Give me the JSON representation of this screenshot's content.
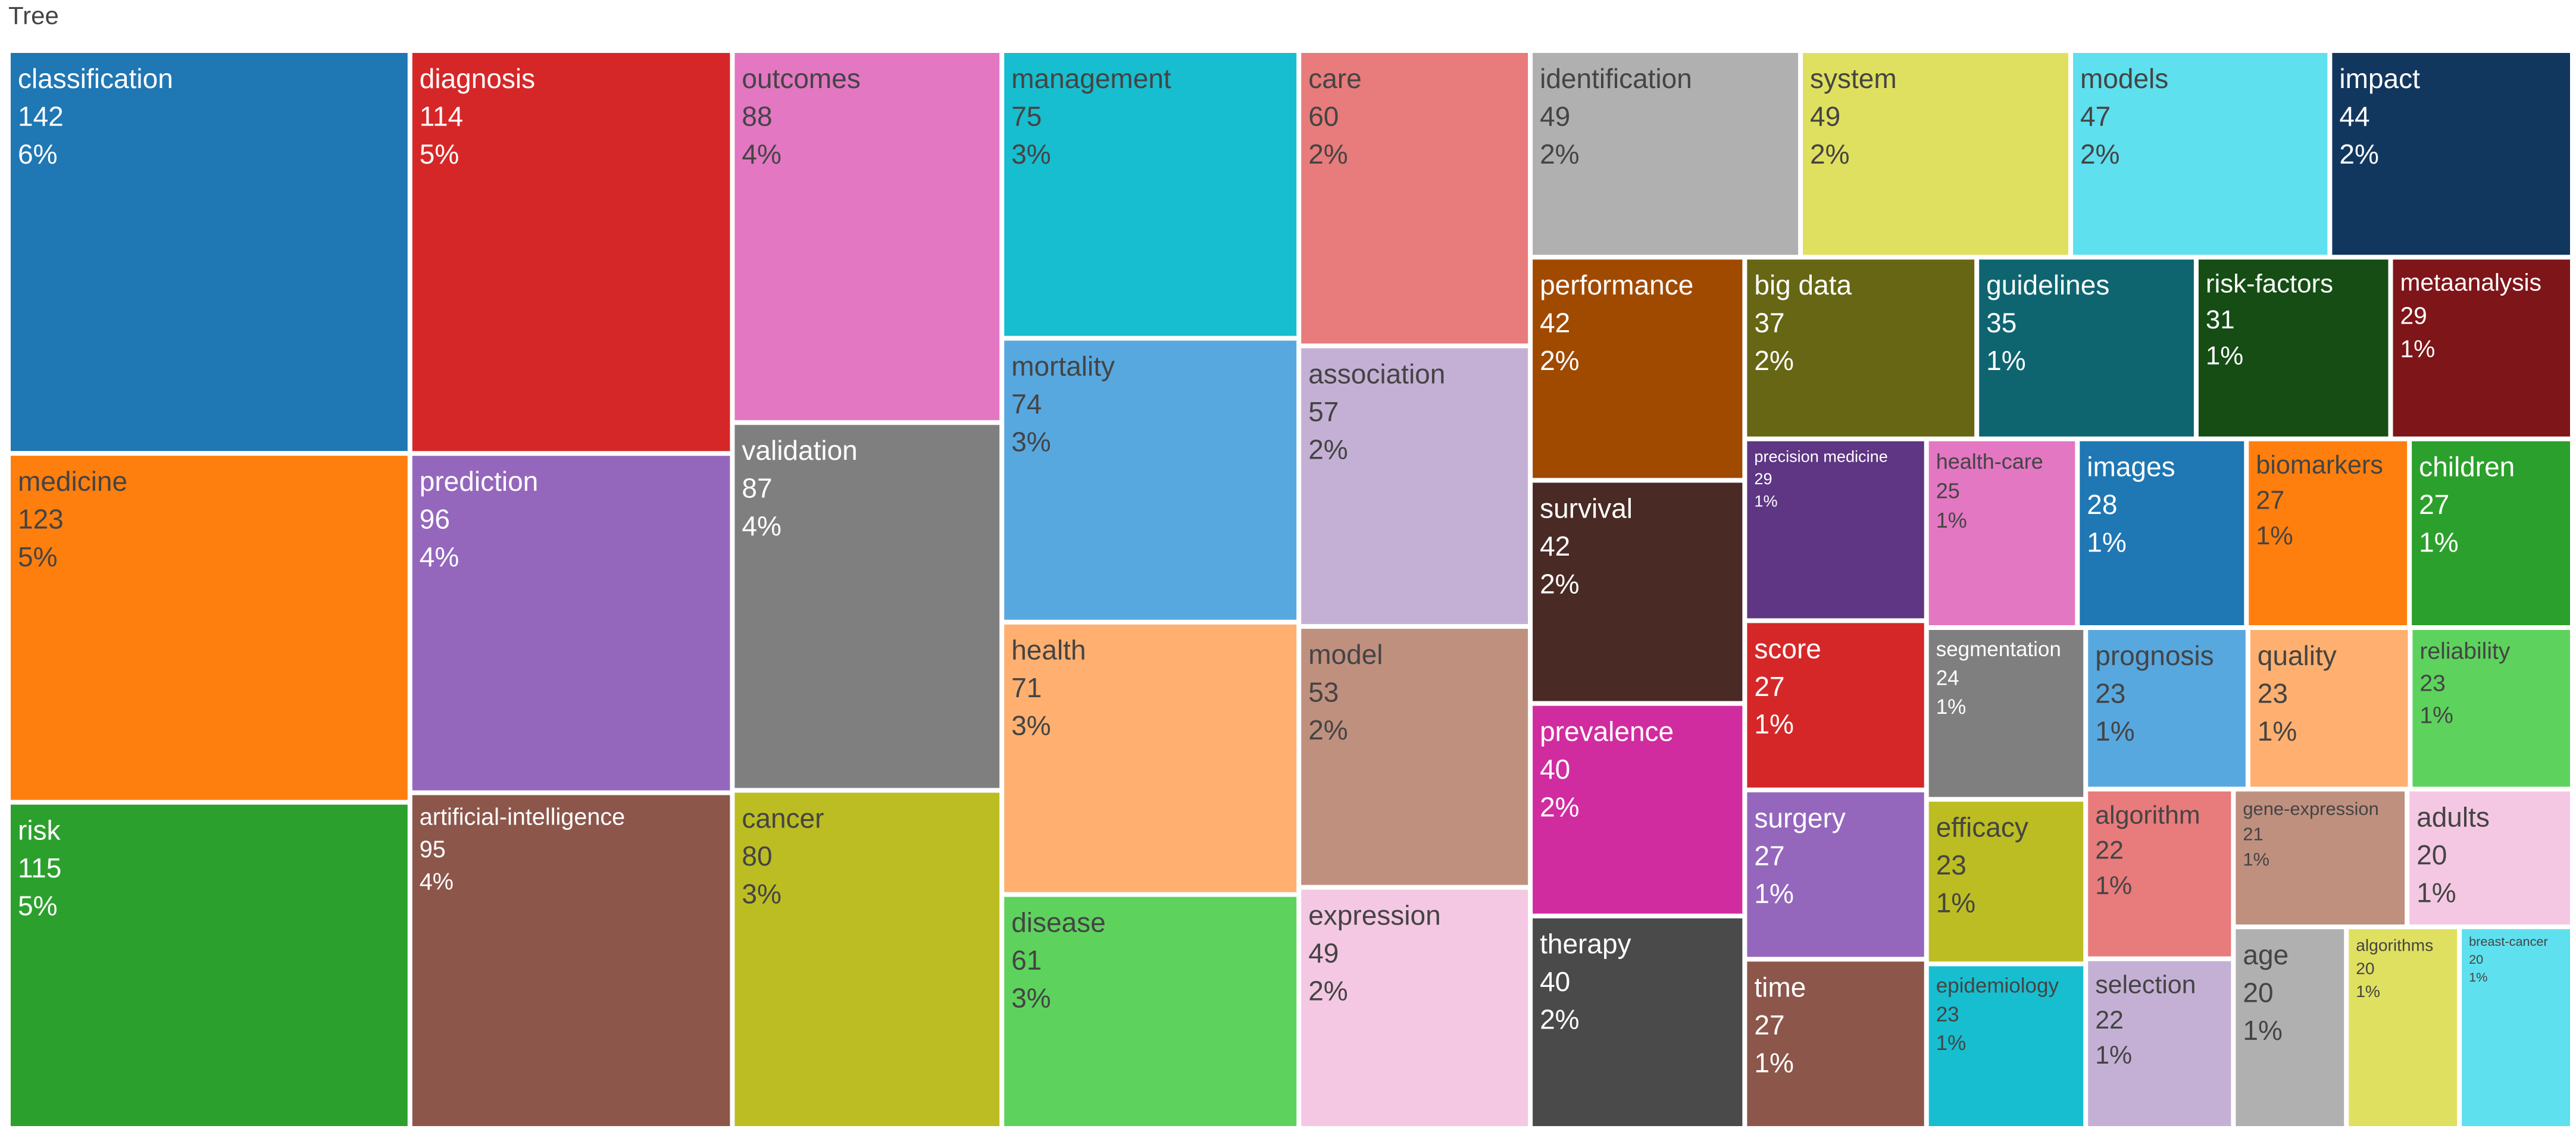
{
  "chart_data": {
    "type": "treemap",
    "title": "Tree",
    "categories": [
      "classification",
      "medicine",
      "risk",
      "diagnosis",
      "prediction",
      "artificial-intelligence",
      "outcomes",
      "validation",
      "cancer",
      "management",
      "mortality",
      "health",
      "disease",
      "care",
      "association",
      "model",
      "expression",
      "identification",
      "system",
      "models",
      "impact",
      "performance",
      "survival",
      "prevalence",
      "therapy",
      "big data",
      "guidelines",
      "risk-factors",
      "metaanalysis",
      "precision medicine",
      "score",
      "surgery",
      "time",
      "health-care",
      "images",
      "biomarkers",
      "children",
      "segmentation",
      "efficacy",
      "epidemiology",
      "prognosis",
      "quality",
      "reliability",
      "algorithm",
      "selection",
      "gene-expression",
      "adults",
      "age",
      "algorithms",
      "breast-cancer"
    ],
    "values": [
      142,
      123,
      115,
      114,
      96,
      95,
      88,
      87,
      80,
      75,
      74,
      71,
      61,
      60,
      57,
      53,
      49,
      49,
      49,
      47,
      44,
      42,
      42,
      40,
      40,
      37,
      35,
      31,
      29,
      29,
      27,
      27,
      27,
      25,
      28,
      27,
      27,
      24,
      23,
      23,
      23,
      23,
      23,
      22,
      22,
      21,
      20,
      20,
      20,
      20
    ],
    "percents": [
      "6%",
      "5%",
      "5%",
      "5%",
      "4%",
      "4%",
      "4%",
      "4%",
      "3%",
      "3%",
      "3%",
      "3%",
      "3%",
      "2%",
      "2%",
      "2%",
      "2%",
      "2%",
      "2%",
      "2%",
      "2%",
      "2%",
      "2%",
      "2%",
      "2%",
      "2%",
      "1%",
      "1%",
      "1%",
      "1%",
      "1%",
      "1%",
      "1%",
      "1%",
      "1%",
      "1%",
      "1%",
      "1%",
      "1%",
      "1%",
      "1%",
      "1%",
      "1%",
      "1%",
      "1%",
      "1%",
      "1%",
      "1%",
      "1%",
      "1%"
    ],
    "colors": [
      "#1f77b4",
      "#ff7f0e",
      "#2ca02c",
      "#d62728",
      "#9467bd",
      "#8c564b",
      "#e377c2",
      "#7f7f7f",
      "#bcbd22",
      "#17becf",
      "#58a8e0",
      "#ffb070",
      "#5dd35d",
      "#e87b7b",
      "#c5b0d5",
      "#c0907f",
      "#f4c8e3",
      "#b0b0b0",
      "#e0e060",
      "#5ee0ee",
      "#12375f",
      "#a04a00",
      "#4a2a25",
      "#d02ca0",
      "#4a4a4a",
      "#666614",
      "#0e6570",
      "#154d15",
      "#7e1519",
      "#5e3683",
      "#d62728",
      "#9467bd",
      "#8c564b",
      "#e377c2",
      "#1f77b4",
      "#ff7f0e",
      "#2ca02c",
      "#7f7f7f",
      "#bcbd22",
      "#17becf",
      "#58a8e0",
      "#ffb070",
      "#5dd35d",
      "#e87b7b",
      "#c5b0d5",
      "#c0907f",
      "#f4c8e3",
      "#b0b0b0",
      "#e0e060",
      "#5ee0ee"
    ]
  }
}
